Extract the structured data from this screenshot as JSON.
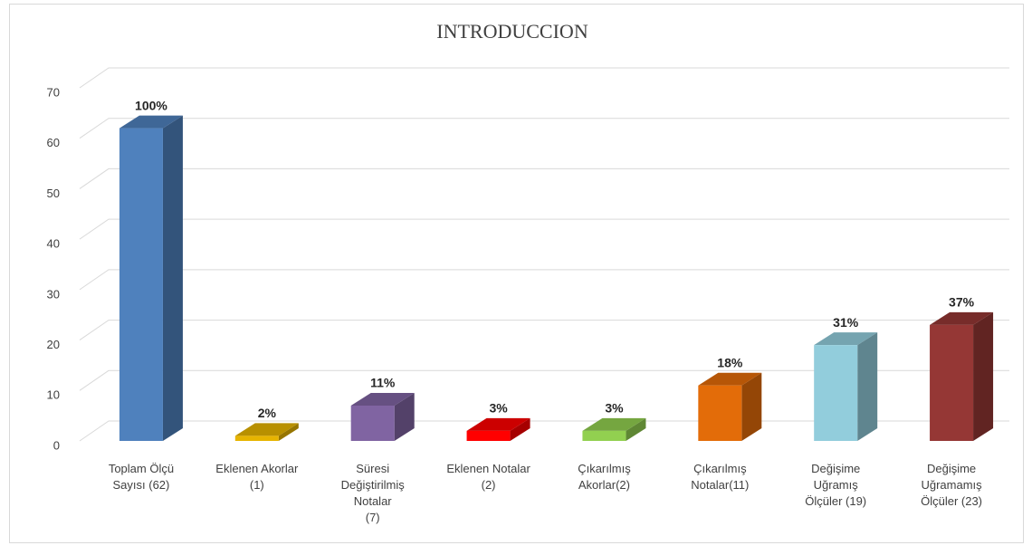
{
  "chart_data": {
    "type": "bar3d",
    "title": "INTRODUCCION",
    "categories": [
      [
        "Toplam Ölçü",
        "Sayısı (62)"
      ],
      [
        "Eklenen Akorlar",
        "(1)"
      ],
      [
        "Süresi",
        "Değiştirilmiş",
        "Notalar",
        "(7)"
      ],
      [
        "Eklenen Notalar",
        "(2)"
      ],
      [
        "Çıkarılmış",
        "Akorlar(2)"
      ],
      [
        "Çıkarılmış",
        "Notalar(11)"
      ],
      [
        "Değişime",
        "Uğramış",
        "Ölçüler (19)"
      ],
      [
        "Değişime",
        "Uğramamış",
        "Ölçüler (23)"
      ]
    ],
    "values": [
      62,
      1,
      7,
      2,
      2,
      11,
      19,
      23
    ],
    "data_labels": [
      "100%",
      "2%",
      "11%",
      "3%",
      "3%",
      "18%",
      "31%",
      "37%"
    ],
    "colors": [
      "#4f81bd",
      "#e6b400",
      "#8064a2",
      "#ff0000",
      "#92d050",
      "#e36c09",
      "#92cddc",
      "#953735"
    ],
    "ylim": [
      0,
      70
    ],
    "yticks": [
      0,
      10,
      20,
      30,
      40,
      50,
      60,
      70
    ],
    "grid": true
  }
}
